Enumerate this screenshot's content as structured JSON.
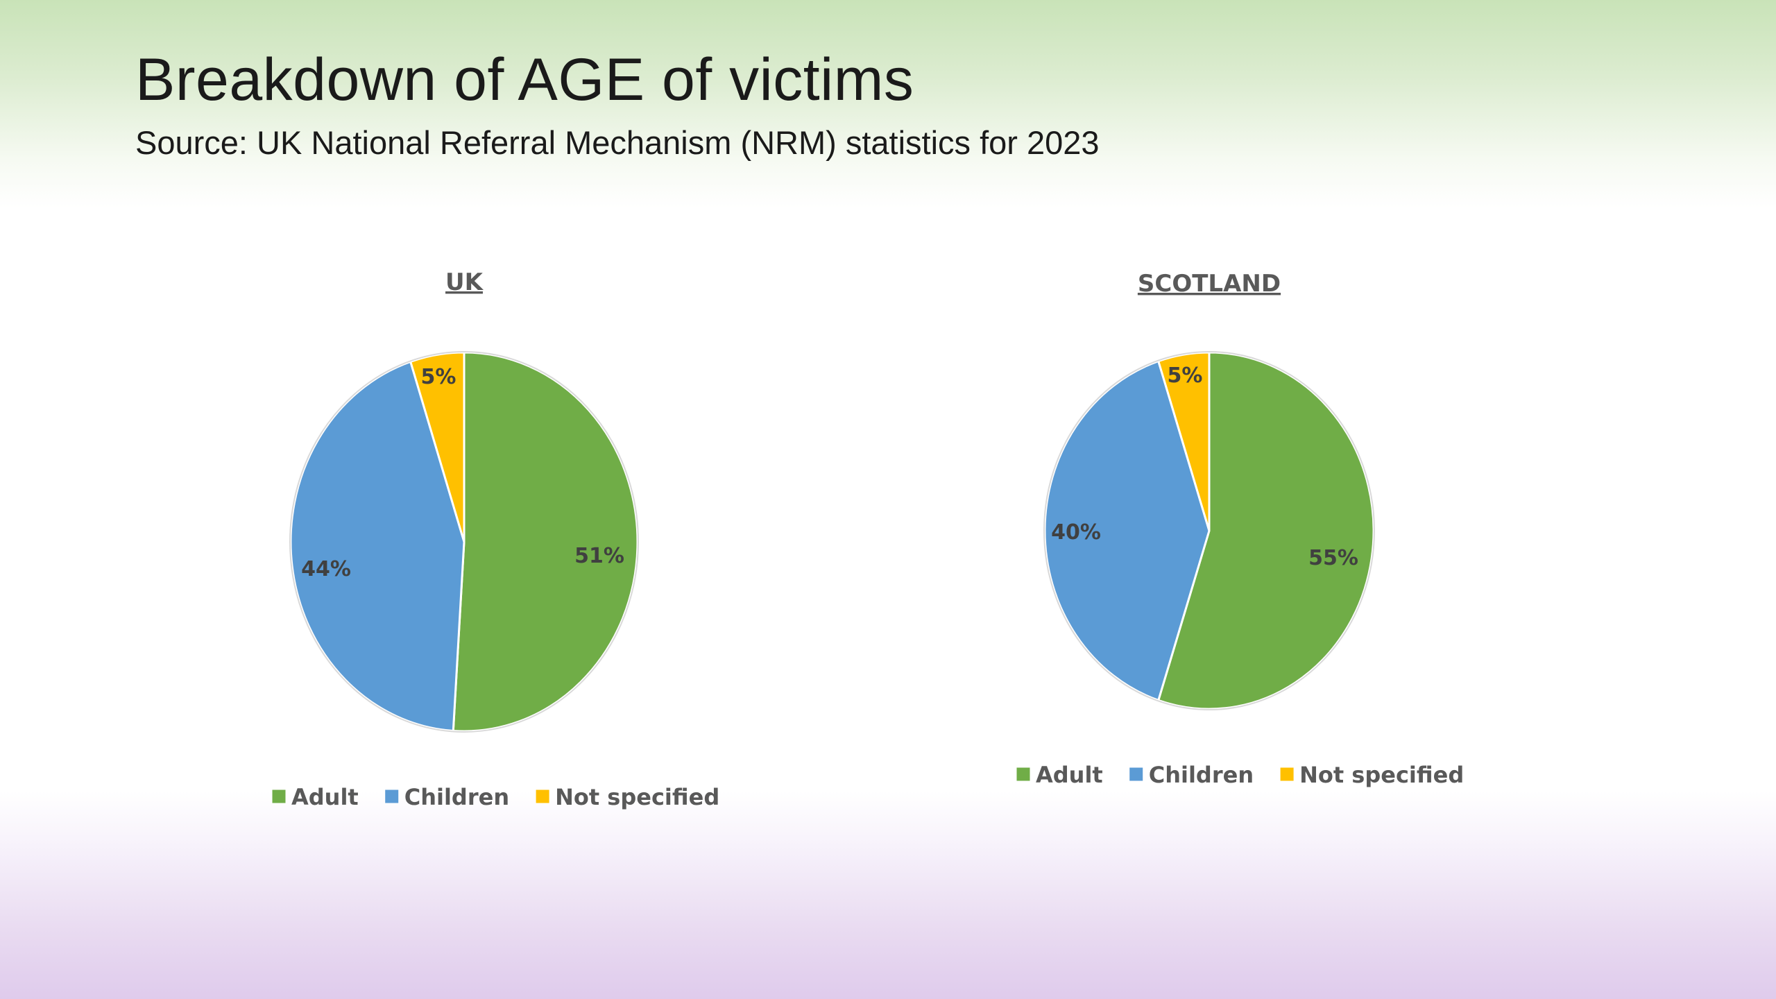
{
  "slide": {
    "title": "Breakdown of AGE of victims",
    "subtitle": "Source: UK National Referral Mechanism (NRM) statistics for 2023"
  },
  "colors": {
    "Adult": "#70ad47",
    "Children": "#5b9bd5",
    "Not specified": "#ffc000"
  },
  "chart_data": [
    {
      "type": "pie",
      "title": "UK",
      "categories": [
        "Adult",
        "Children",
        "Not specified"
      ],
      "values": [
        51,
        44,
        5
      ],
      "labels": [
        "51%",
        "44%",
        "5%"
      ],
      "legend_position": "bottom"
    },
    {
      "type": "pie",
      "title": "SCOTLAND",
      "categories": [
        "Adult",
        "Children",
        "Not specified"
      ],
      "values": [
        55,
        40,
        5
      ],
      "labels": [
        "55%",
        "40%",
        "5%"
      ],
      "legend_position": "bottom"
    }
  ]
}
